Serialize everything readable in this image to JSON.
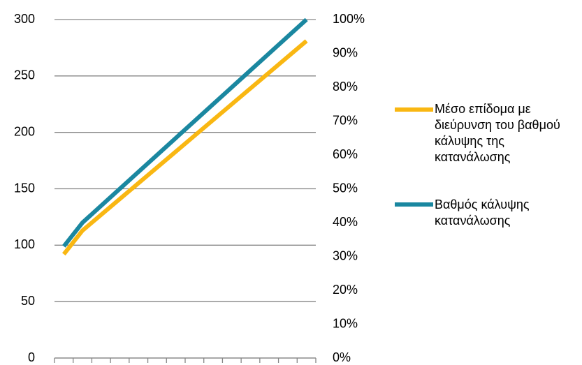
{
  "chart_data": {
    "type": "line",
    "categories": [
      null,
      null,
      null,
      null,
      null,
      null,
      null,
      null,
      null,
      null,
      null,
      null,
      null,
      null
    ],
    "series": [
      {
        "name": "Μέσο επίδομα με διεύρυνση του βαθμού κάλυψης της κατανάλωσης",
        "color": "#f9b712",
        "axis": "y",
        "values": [
          92,
          113,
          127,
          141,
          155,
          169,
          183,
          197,
          211,
          225,
          239,
          253,
          267,
          281
        ]
      },
      {
        "name": "Βαθμός κάλυψης κατανάλωσης",
        "color": "#1a87a0",
        "axis": "y2",
        "values": [
          33,
          40,
          45,
          50,
          55,
          60,
          65,
          70,
          75,
          80,
          85,
          90,
          95,
          100
        ]
      }
    ],
    "ylim": [
      0,
      300
    ],
    "yticks": [
      0,
      50,
      100,
      150,
      200,
      250,
      300
    ],
    "y2lim": [
      0,
      100
    ],
    "y2ticks": [
      {
        "value": 0,
        "label": "0%"
      },
      {
        "value": 10,
        "label": "10%"
      },
      {
        "value": 20,
        "label": "20%"
      },
      {
        "value": 30,
        "label": "30%"
      },
      {
        "value": 40,
        "label": "40%"
      },
      {
        "value": 50,
        "label": "50%"
      },
      {
        "value": 60,
        "label": "60%"
      },
      {
        "value": 70,
        "label": "70%"
      },
      {
        "value": 80,
        "label": "80%"
      },
      {
        "value": 90,
        "label": "90%"
      },
      {
        "value": 100,
        "label": "100%"
      }
    ],
    "grid": true,
    "legend": "right"
  }
}
